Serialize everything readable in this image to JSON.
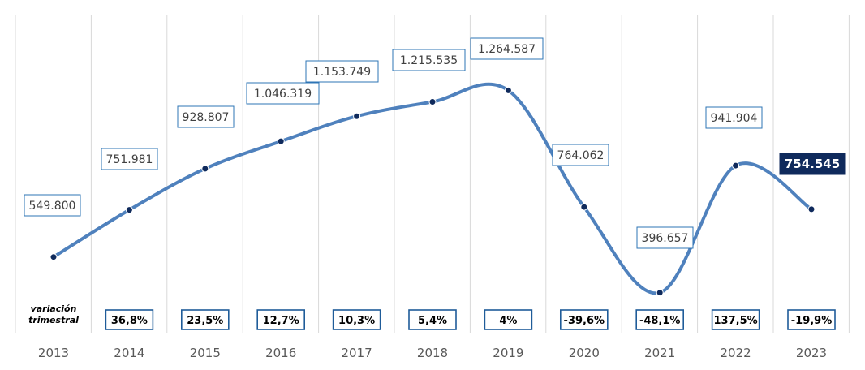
{
  "chart_data": {
    "type": "line",
    "categories": [
      "2013",
      "2014",
      "2015",
      "2016",
      "2017",
      "2018",
      "2019",
      "2020",
      "2021",
      "2022",
      "2023"
    ],
    "values": [
      549800,
      751981,
      928807,
      1046319,
      1153749,
      1215535,
      1264587,
      764062,
      396657,
      941904,
      754545
    ],
    "value_labels": [
      "549.800",
      "751.981",
      "928.807",
      "1.046.319",
      "1.153.749",
      "1.215.535",
      "1.264.587",
      "764.062",
      "396.657",
      "941.904",
      "754.545"
    ],
    "variation_title": [
      "variación",
      "trimestral"
    ],
    "variations": [
      "",
      "36,8%",
      "23,5%",
      "12,7%",
      "10,3%",
      "5,4%",
      "4%",
      "-39,6%",
      "-48,1%",
      "137,5%",
      "-19,9%"
    ],
    "highlight_index": 10,
    "ylim": [
      0,
      1450000
    ],
    "grid": "vertical",
    "colors": {
      "line": "#4f81bd",
      "marker": "#0f2a5c",
      "highlight": "#0f2a5c",
      "label_border": "#2e75b6",
      "pct_border": "#1f5c99",
      "grid": "#d9d9d9"
    }
  }
}
